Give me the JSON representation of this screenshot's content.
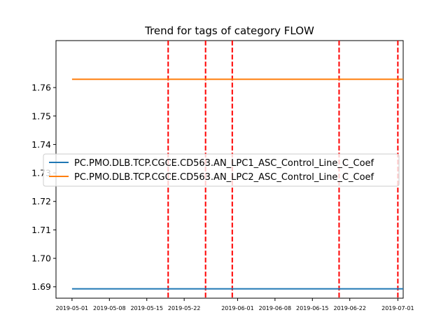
{
  "chart_data": {
    "type": "line",
    "title": "Trend for tags of category FLOW",
    "xlabel": "",
    "ylabel": "",
    "x_range": [
      "2019-04-28",
      "2019-07-02"
    ],
    "ylim": [
      1.686,
      1.7765
    ],
    "yticks": [
      1.69,
      1.7,
      1.71,
      1.72,
      1.73,
      1.74,
      1.75,
      1.76
    ],
    "ytick_labels": [
      "1.69",
      "1.70",
      "1.71",
      "1.72",
      "1.73",
      "1.74",
      "1.75",
      "1.76"
    ],
    "xticks": [
      "2019-05-01",
      "2019-05-08",
      "2019-05-15",
      "2019-05-22",
      "2019-06-01",
      "2019-06-08",
      "2019-06-15",
      "2019-06-22",
      "2019-07-01"
    ],
    "xtick_labels": [
      "2019-05-01",
      "2019-05-08",
      "2019-05-15",
      "2019-05-22",
      "2019-06-01",
      "2019-06-08",
      "2019-06-15",
      "2019-06-22",
      "2019-07-01"
    ],
    "grid": false,
    "legend_position": "center-left",
    "series": [
      {
        "name": "PC.PMO.DLB.TCP.CGCE.CD563.AN_LPC1_ASC_Control_Line_C_Coef",
        "color": "#1f77b4",
        "x": [
          "2019-05-01",
          "2019-07-02"
        ],
        "values": [
          1.6893,
          1.6893
        ]
      },
      {
        "name": "PC.PMO.DLB.TCP.CGCE.CD563.AN_LPC2_ASC_Control_Line_C_Coef",
        "color": "#ff7f0e",
        "x": [
          "2019-05-01",
          "2019-07-02"
        ],
        "values": [
          1.7629,
          1.7629
        ]
      }
    ],
    "vertical_lines": {
      "color": "#ff0000",
      "style": "dashed",
      "x": [
        "2019-05-19",
        "2019-05-26",
        "2019-05-31",
        "2019-06-20",
        "2019-07-01"
      ]
    }
  }
}
